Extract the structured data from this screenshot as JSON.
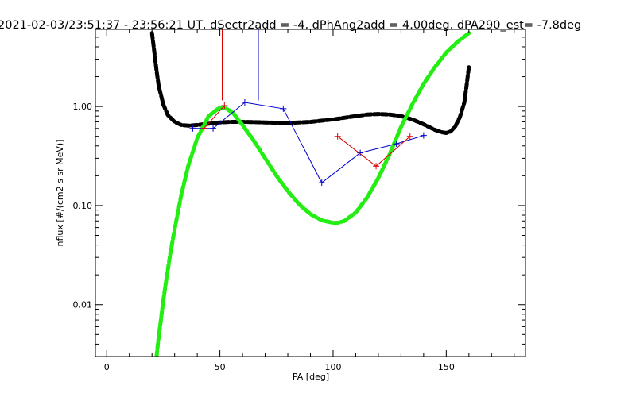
{
  "chart_data": {
    "type": "line",
    "title": "2021-02-03/23:51:37 - 23:56:21 UT, dSectr2add = -4, dPhAng2add = 4.00deg, dPA290_est=  -7.8deg",
    "xlabel": "PA [deg]",
    "ylabel": "nflux [#/(cm2 s sr MeV)]",
    "xlim": [
      -5,
      185
    ],
    "ylim": [
      0.003,
      6
    ],
    "yscale": "log",
    "grid": false,
    "x_ticks": [
      0,
      50,
      100,
      150
    ],
    "x_tick_labels": [
      "0",
      "50",
      "100",
      "150"
    ],
    "y_ticks": [
      0.01,
      0.1,
      1.0
    ],
    "y_tick_labels": [
      "0.01",
      "0.10",
      "1.00"
    ],
    "series": [
      {
        "style": "dashed-thick",
        "color": "#000000",
        "x": [
          20,
          21,
          22,
          23,
          25,
          27,
          30,
          33,
          36,
          40,
          45,
          50,
          55,
          60,
          70,
          80,
          90,
          100,
          110,
          115,
          120,
          125,
          130,
          135,
          140,
          145,
          148,
          150,
          152,
          154,
          156,
          158,
          159,
          160
        ],
        "y": [
          5.5,
          3.6,
          2.3,
          1.6,
          1.05,
          0.82,
          0.7,
          0.65,
          0.64,
          0.65,
          0.67,
          0.69,
          0.7,
          0.7,
          0.69,
          0.68,
          0.7,
          0.74,
          0.8,
          0.83,
          0.84,
          0.83,
          0.8,
          0.74,
          0.66,
          0.58,
          0.55,
          0.54,
          0.56,
          0.63,
          0.78,
          1.1,
          1.65,
          2.5
        ]
      },
      {
        "style": "dashed-thick",
        "color": "#22ee11",
        "x": [
          22,
          23,
          24,
          25,
          26,
          28,
          30,
          33,
          36,
          40,
          45,
          50,
          53,
          56,
          60,
          65,
          70,
          75,
          80,
          85,
          90,
          95,
          100,
          102,
          105,
          110,
          115,
          120,
          125,
          130,
          135,
          140,
          145,
          150,
          155,
          160
        ],
        "y": [
          0.003,
          0.0048,
          0.0072,
          0.011,
          0.016,
          0.032,
          0.058,
          0.13,
          0.25,
          0.48,
          0.8,
          0.98,
          0.95,
          0.85,
          0.65,
          0.45,
          0.3,
          0.2,
          0.14,
          0.103,
          0.082,
          0.071,
          0.067,
          0.067,
          0.07,
          0.085,
          0.12,
          0.19,
          0.33,
          0.62,
          1.05,
          1.7,
          2.5,
          3.5,
          4.5,
          5.5
        ]
      },
      {
        "style": "solid-plus",
        "color": "#0000cc",
        "x": [
          38,
          47,
          61,
          78,
          95,
          112,
          128,
          140
        ],
        "y": [
          0.6,
          0.6,
          1.1,
          0.95,
          0.17,
          0.34,
          0.42,
          0.51
        ]
      },
      {
        "style": "solid-plus",
        "color": "#dd0000",
        "x": [
          102,
          119,
          134
        ],
        "y": [
          0.5,
          0.25,
          0.5
        ]
      },
      {
        "style": "solid-plus",
        "color": "#dd0000",
        "x": [
          43,
          52
        ],
        "y": [
          0.6,
          1.02
        ]
      },
      {
        "style": "vertical-line",
        "color": "#dd0000",
        "x": [
          51,
          51
        ],
        "y": [
          1.15,
          6
        ]
      },
      {
        "style": "vertical-line",
        "color": "#0000cc",
        "x": [
          67,
          67
        ],
        "y": [
          1.15,
          6
        ]
      }
    ]
  }
}
